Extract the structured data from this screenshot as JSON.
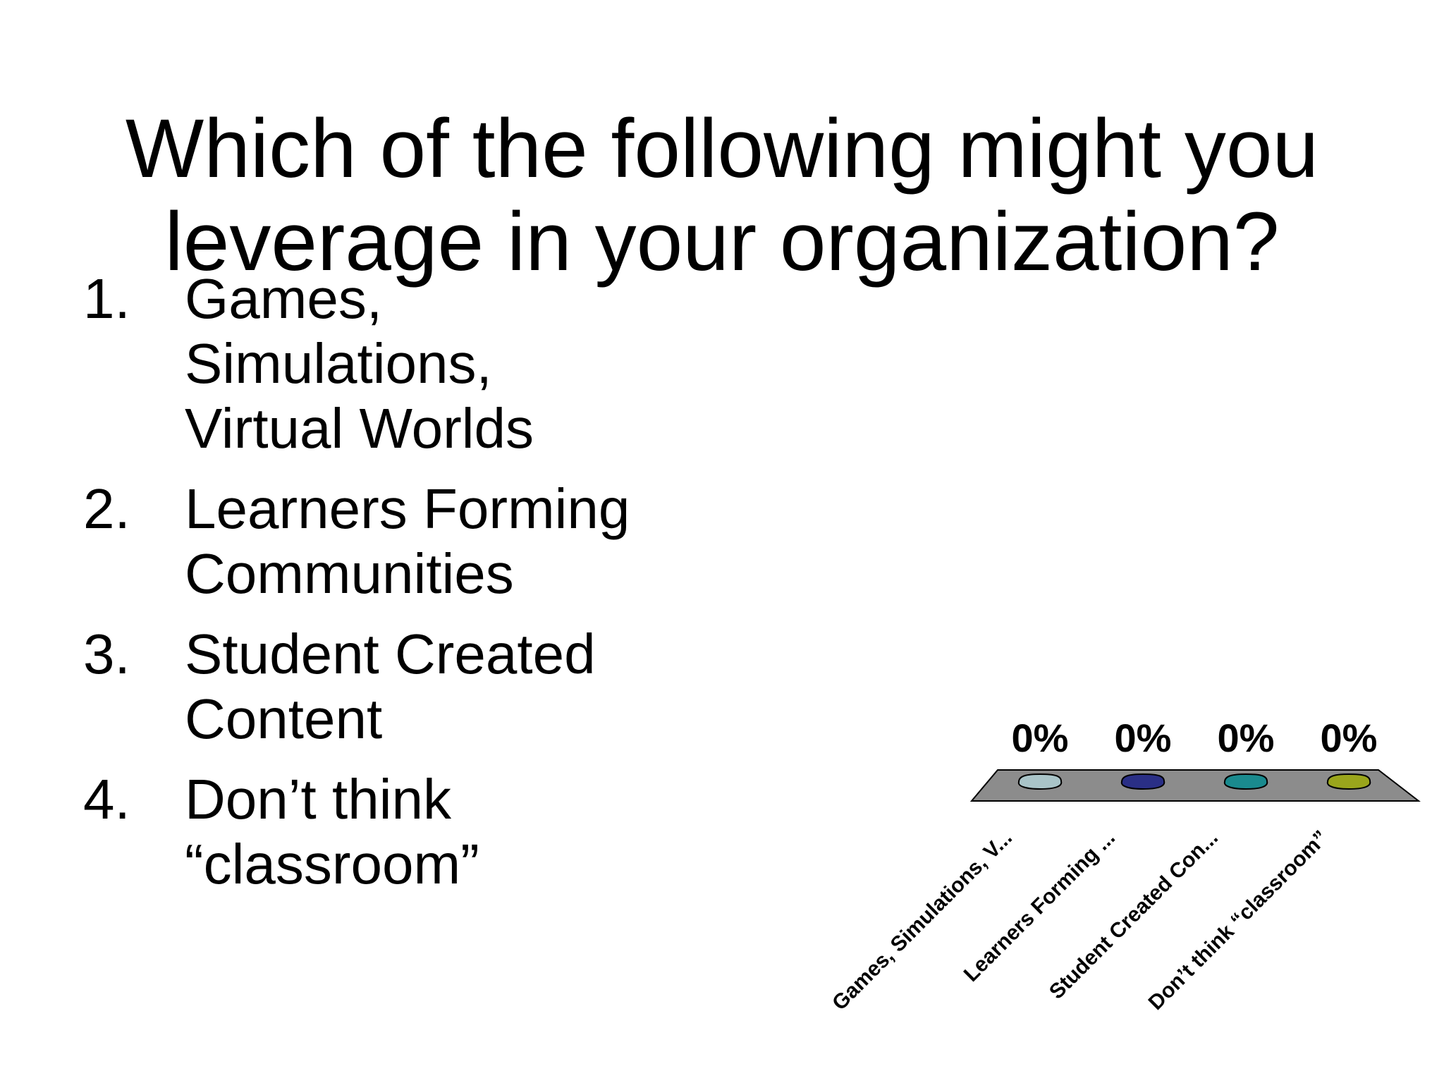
{
  "slide": {
    "title_lines": [
      "Which of the following might you",
      "leverage in your organization?"
    ],
    "options": [
      {
        "number": "1.",
        "lines": [
          "Games,",
          "Simulations,",
          "Virtual Worlds"
        ]
      },
      {
        "number": "2.",
        "lines": [
          "Learners Forming",
          "Communities"
        ]
      },
      {
        "number": "3.",
        "lines": [
          "Student Created",
          "Content"
        ]
      },
      {
        "number": "4.",
        "lines": [
          "Don’t think",
          "“classroom”"
        ]
      }
    ]
  },
  "chart_data": {
    "type": "bar",
    "categories": [
      "Games, Simulations, V...",
      "Learners Forming ...",
      "Student Created Con...",
      "Don’t think “classroom”"
    ],
    "values": [
      0,
      0,
      0,
      0
    ],
    "data_labels": [
      "0%",
      "0%",
      "0%",
      "0%"
    ],
    "colors": [
      "#a9c4c8",
      "#2a2f86",
      "#1a8a8e",
      "#9aa51c"
    ],
    "floor_color": "#8c8c8c",
    "unit": "%"
  }
}
